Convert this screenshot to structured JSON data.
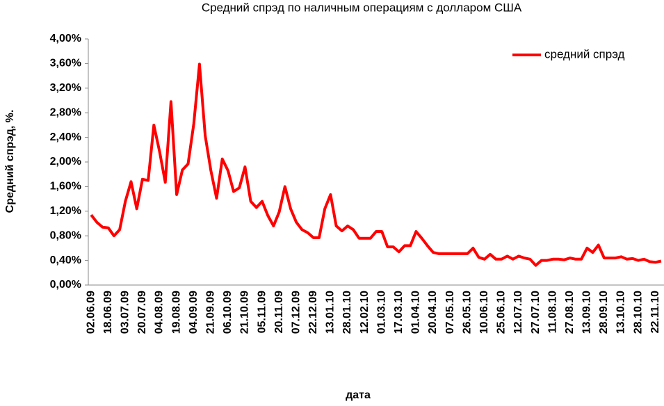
{
  "chart_data": {
    "type": "line",
    "title": "Средний спрэд по наличным операциям с долларом США",
    "x_label": "дата",
    "y_label": "Средний спрэд,  %.",
    "categories": [
      "02.06.09",
      null,
      null,
      "18.06.09",
      null,
      null,
      "03.07.09",
      null,
      null,
      "20.07.09",
      null,
      null,
      "04.08.09",
      null,
      null,
      "19.08.09",
      null,
      null,
      "04.09.09",
      null,
      null,
      "21.09.09",
      null,
      null,
      "06.10.09",
      null,
      null,
      "21.10.09",
      null,
      null,
      "05.11.09",
      null,
      null,
      "20.11.09",
      null,
      null,
      "07.12.09",
      null,
      null,
      "22.12.09",
      null,
      null,
      "13.01.10",
      null,
      null,
      "28.01.10",
      null,
      null,
      "12.02.10",
      null,
      null,
      "01.03.10",
      null,
      null,
      "17.03.10",
      null,
      null,
      "01.04.10",
      null,
      null,
      "20.04.10",
      null,
      null,
      "07.05.10",
      null,
      null,
      "26.05.10",
      null,
      null,
      "10.06.10",
      null,
      null,
      "25.06.10",
      null,
      null,
      "12.07.10",
      null,
      null,
      "27.07.10",
      null,
      null,
      "11.08.10",
      null,
      null,
      "27.08.10",
      null,
      null,
      "13.09.10",
      null,
      null,
      "28.09.10",
      null,
      null,
      "13.10.10",
      null,
      null,
      "28.10.10",
      null,
      null,
      "22.11.10",
      null
    ],
    "series": [
      {
        "name": "средний спрэд",
        "color": "#ff0000",
        "values": [
          1.14,
          1.02,
          0.94,
          0.93,
          0.8,
          0.9,
          1.36,
          1.68,
          1.24,
          1.72,
          1.7,
          2.6,
          2.17,
          1.67,
          2.98,
          1.47,
          1.87,
          1.97,
          2.62,
          3.59,
          2.43,
          1.86,
          1.41,
          2.05,
          1.86,
          1.52,
          1.58,
          1.92,
          1.36,
          1.26,
          1.36,
          1.13,
          0.96,
          1.19,
          1.6,
          1.24,
          1.02,
          0.9,
          0.85,
          0.77,
          0.77,
          1.24,
          1.47,
          0.96,
          0.88,
          0.96,
          0.9,
          0.76,
          0.76,
          0.76,
          0.87,
          0.87,
          0.62,
          0.62,
          0.54,
          0.64,
          0.64,
          0.87,
          0.76,
          0.64,
          0.53,
          0.51,
          0.51,
          0.51,
          0.51,
          0.51,
          0.51,
          0.6,
          0.45,
          0.42,
          0.5,
          0.42,
          0.42,
          0.47,
          0.42,
          0.47,
          0.44,
          0.42,
          0.32,
          0.4,
          0.4,
          0.42,
          0.42,
          0.41,
          0.44,
          0.42,
          0.42,
          0.6,
          0.53,
          0.65,
          0.44,
          0.44,
          0.44,
          0.46,
          0.42,
          0.43,
          0.4,
          0.42,
          0.38,
          0.37,
          0.39
        ]
      }
    ],
    "ylim": [
      0,
      4
    ],
    "yticks": [
      {
        "value": 0,
        "label": "0,00%"
      },
      {
        "value": 0.4,
        "label": "0,40%"
      },
      {
        "value": 0.8,
        "label": "0,80%"
      },
      {
        "value": 1.2,
        "label": "1,20%"
      },
      {
        "value": 1.6,
        "label": "1,60%"
      },
      {
        "value": 2,
        "label": "2,00%"
      },
      {
        "value": 2.4,
        "label": "2,40%"
      },
      {
        "value": 2.8,
        "label": "2,80%"
      },
      {
        "value": 3.2,
        "label": "3,20%"
      },
      {
        "value": 3.6,
        "label": "3,60%"
      },
      {
        "value": 4,
        "label": "4,00%"
      }
    ],
    "legend": "top-right"
  }
}
